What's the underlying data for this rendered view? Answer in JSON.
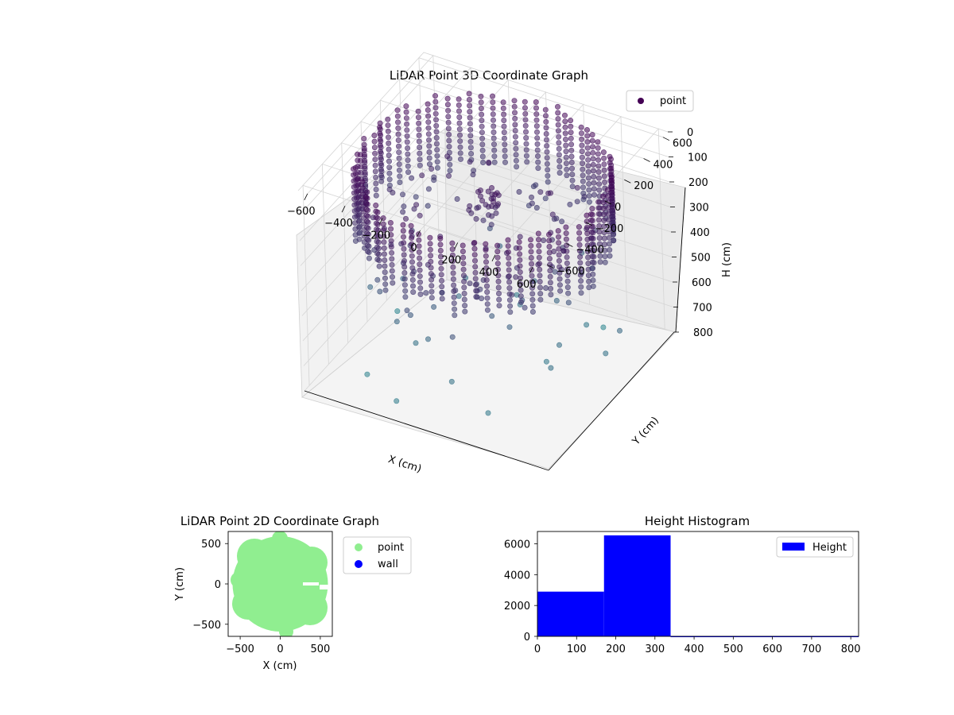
{
  "chart_data": [
    {
      "type": "scatter",
      "title": "LiDAR Point 3D Coordinate Graph",
      "xlabel": "X (cm)",
      "ylabel": "Y (cm)",
      "zlabel": "H (cm)",
      "xlim": [
        -650,
        650
      ],
      "ylim": [
        -650,
        650
      ],
      "zlim": [
        0,
        800
      ],
      "z_axis_inverted": true,
      "x_ticks": [
        "−600",
        "−400",
        "−200",
        "0",
        "200",
        "400",
        "600"
      ],
      "y_ticks": [
        "−600",
        "−400",
        "−200",
        "0",
        "200",
        "400",
        "600"
      ],
      "z_ticks": [
        "0",
        "100",
        "200",
        "300",
        "400",
        "500",
        "600",
        "700",
        "800"
      ],
      "legend": {
        "placement": "upper-right",
        "entries": [
          {
            "label": "point",
            "color": "#440154"
          }
        ]
      },
      "grid": true,
      "colormap": "viridis",
      "description_of_data": "about 9500 points forming a ring of vertical wall columns of radius about 600 cm, heights 0-340 cm, plus sparse outliers up to 800 cm"
    },
    {
      "type": "scatter",
      "title": "LiDAR Point 2D Coordinate Graph",
      "xlabel": "X (cm)",
      "ylabel": "Y (cm)",
      "xlim": [
        -650,
        650
      ],
      "ylim": [
        -650,
        650
      ],
      "x_ticks": [
        "−500",
        "0",
        "500"
      ],
      "y_ticks": [
        "−500",
        "0",
        "500"
      ],
      "legend": {
        "placement": "outside-right",
        "entries": [
          {
            "label": "point",
            "color": "#90ee90"
          },
          {
            "label": "wall",
            "color": "#0000ff"
          }
        ]
      },
      "series": [
        {
          "name": "point",
          "color": "#90ee90",
          "radius": 600
        },
        {
          "name": "wall",
          "color": "#0000ff"
        }
      ]
    },
    {
      "type": "bar",
      "title": "Height Histogram",
      "bins": [
        [
          0,
          170
        ],
        [
          170,
          340
        ],
        [
          340,
          820
        ]
      ],
      "values": [
        2900,
        6550,
        25
      ],
      "xlim": [
        0,
        820
      ],
      "ylim": [
        0,
        6800
      ],
      "x_ticks": [
        "0",
        "100",
        "200",
        "300",
        "400",
        "500",
        "600",
        "700",
        "800"
      ],
      "y_ticks": [
        "0",
        "2000",
        "4000",
        "6000"
      ],
      "legend": {
        "placement": "upper-right",
        "entries": [
          {
            "label": "Height",
            "color": "#0000ff"
          }
        ]
      },
      "series": [
        {
          "name": "Height",
          "color": "#0000ff"
        }
      ]
    }
  ]
}
